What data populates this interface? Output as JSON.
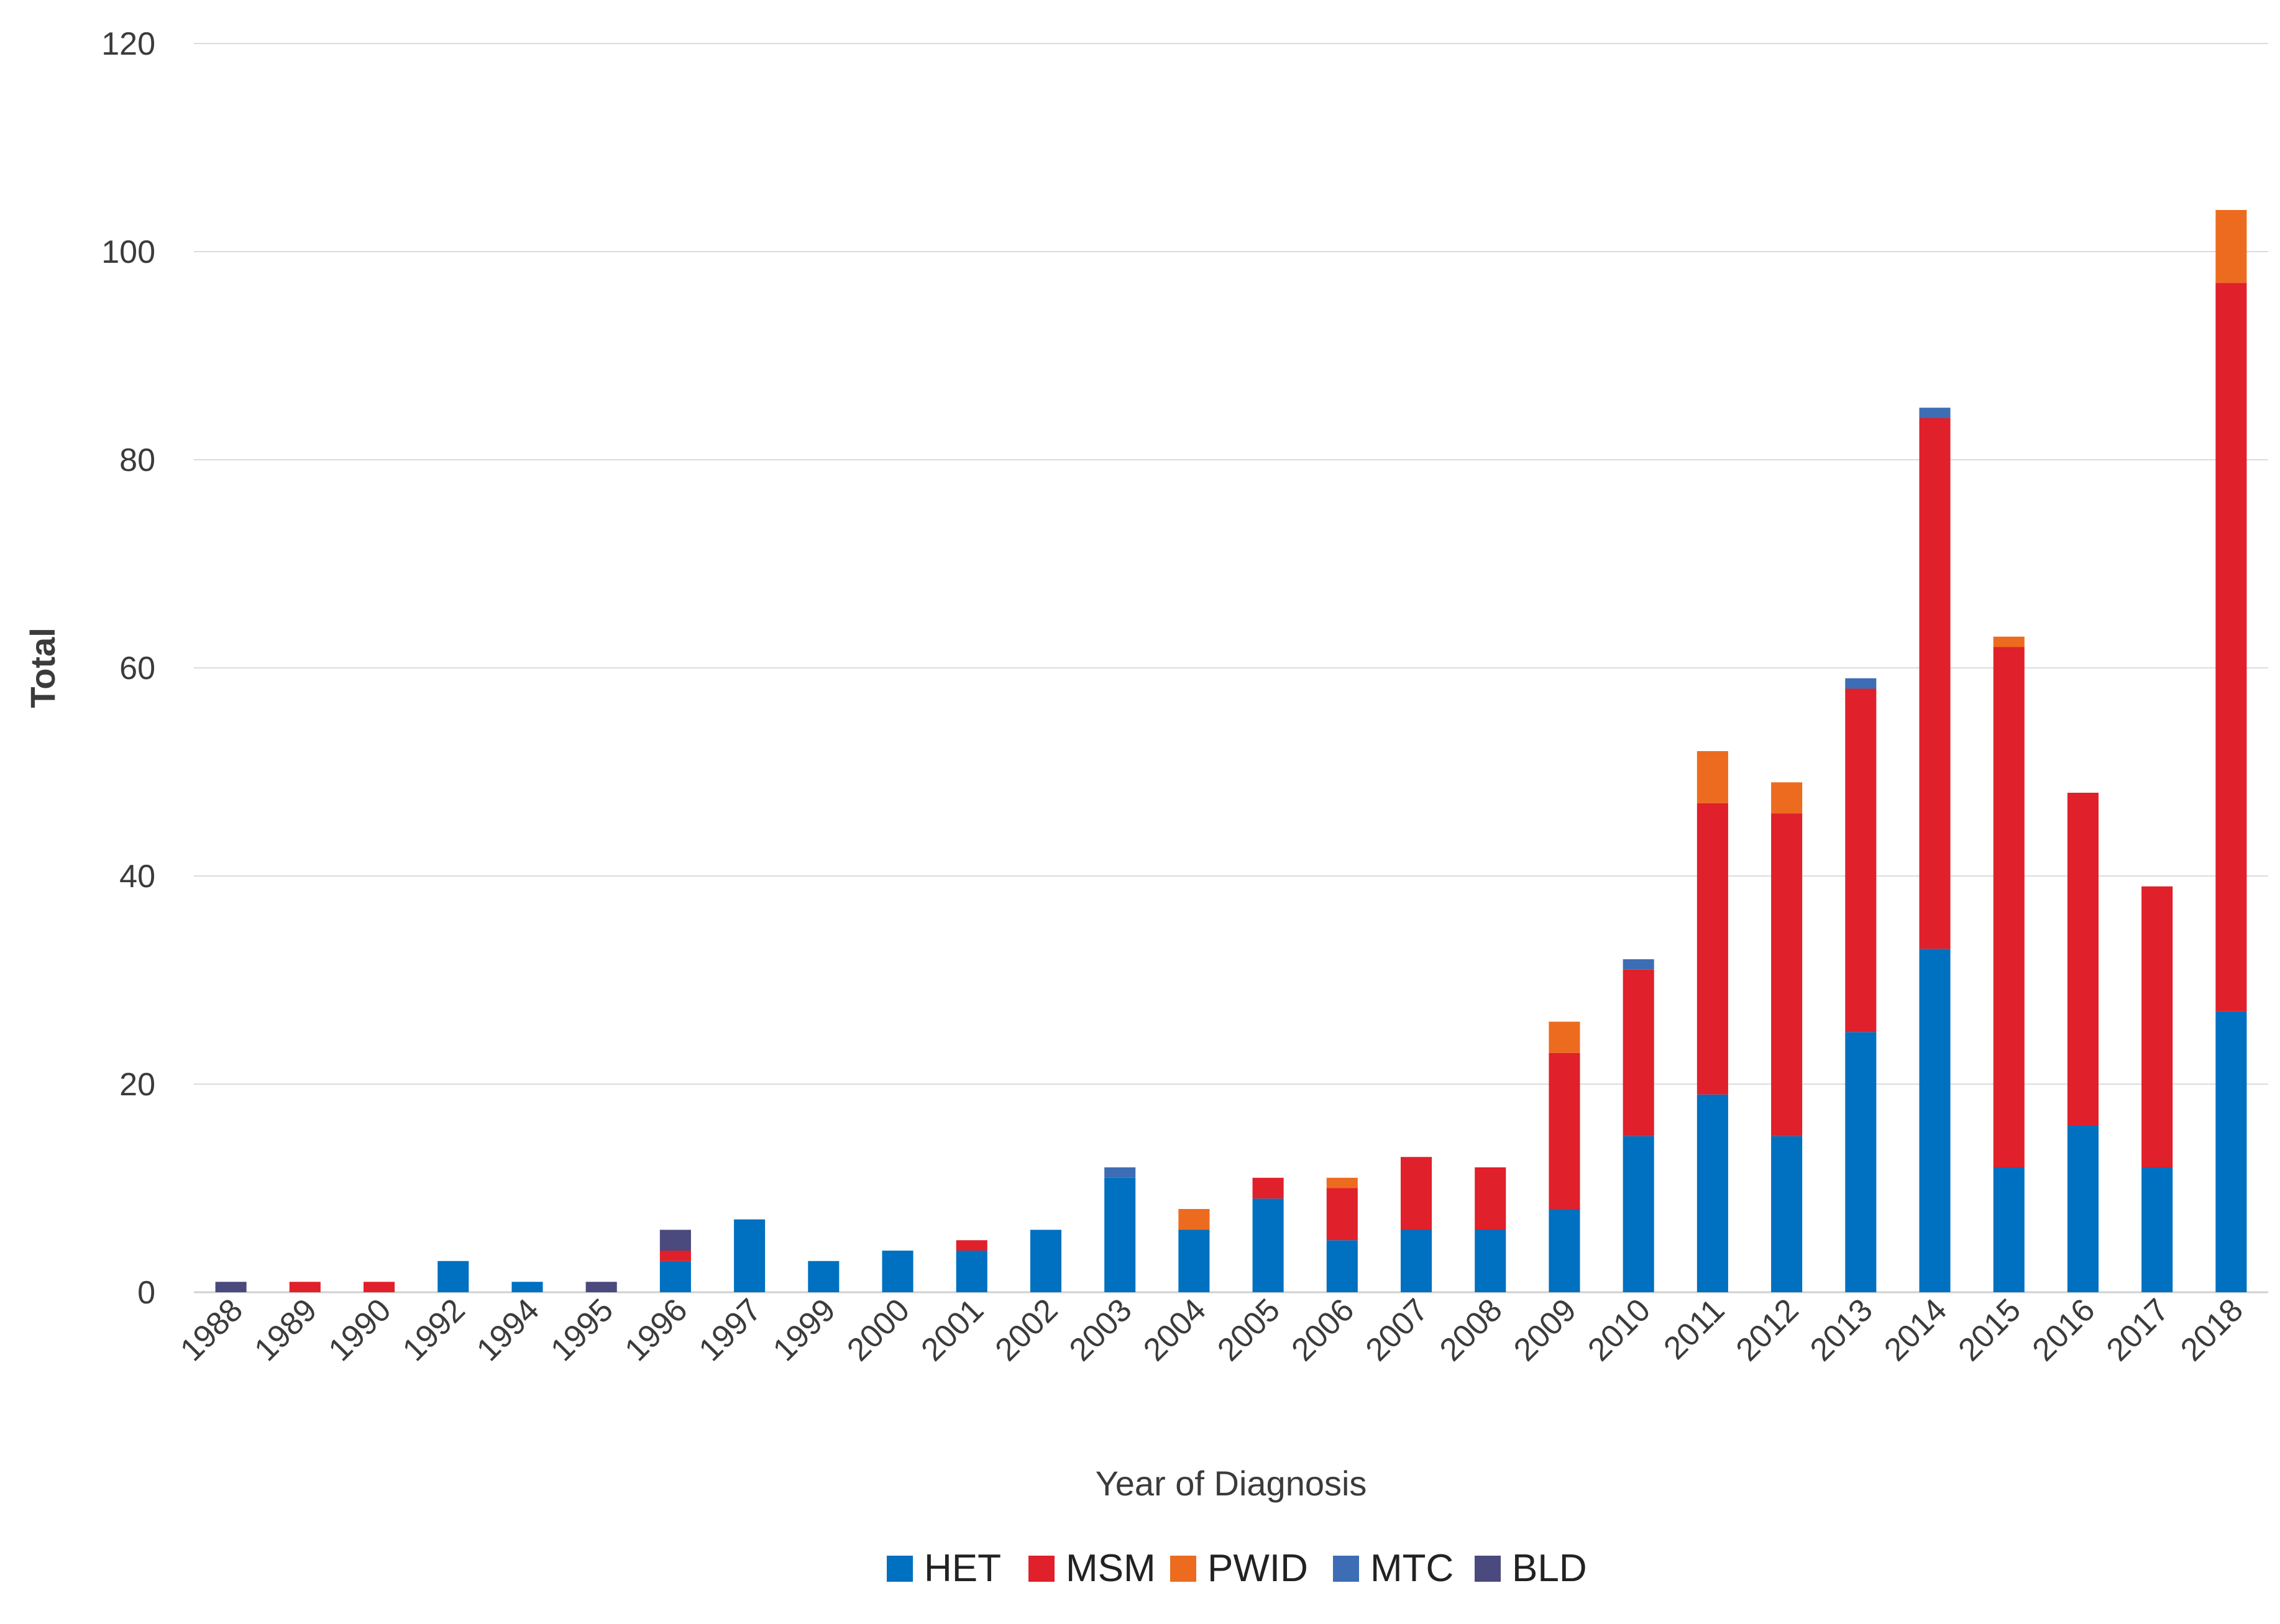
{
  "chart_data": {
    "type": "bar",
    "stacked": true,
    "title": "",
    "xlabel": "Year of Diagnosis",
    "ylabel": "Total",
    "ylim": [
      0,
      120
    ],
    "yticks": [
      0,
      20,
      40,
      60,
      80,
      100,
      120
    ],
    "grid": true,
    "legend_position": "bottom",
    "categories": [
      "1988",
      "1989",
      "1990",
      "1992",
      "1994",
      "1995",
      "1996",
      "1997",
      "1999",
      "2000",
      "2001",
      "2002",
      "2003",
      "2004",
      "2005",
      "2006",
      "2007",
      "2008",
      "2009",
      "2010",
      "2011",
      "2012",
      "2013",
      "2014",
      "2015",
      "2016",
      "2017",
      "2018"
    ],
    "series": [
      {
        "name": "HET",
        "color": "#0070c0",
        "values": [
          0,
          0,
          0,
          3,
          1,
          0,
          3,
          7,
          3,
          4,
          4,
          6,
          11,
          6,
          9,
          5,
          6,
          6,
          8,
          15,
          19,
          15,
          25,
          33,
          12,
          16,
          12,
          27
        ]
      },
      {
        "name": "MSM",
        "color": "#e0202a",
        "values": [
          0,
          1,
          1,
          0,
          0,
          0,
          1,
          0,
          0,
          0,
          1,
          0,
          0,
          0,
          2,
          5,
          7,
          6,
          15,
          16,
          28,
          31,
          33,
          51,
          50,
          32,
          27,
          70
        ]
      },
      {
        "name": "PWID",
        "color": "#ed6b1f",
        "values": [
          0,
          0,
          0,
          0,
          0,
          0,
          0,
          0,
          0,
          0,
          0,
          0,
          0,
          2,
          0,
          1,
          0,
          0,
          3,
          0,
          5,
          3,
          0,
          0,
          1,
          0,
          0,
          7
        ]
      },
      {
        "name": "MTC",
        "color": "#3d6db5",
        "values": [
          0,
          0,
          0,
          0,
          0,
          0,
          0,
          0,
          0,
          0,
          0,
          0,
          1,
          0,
          0,
          0,
          0,
          0,
          0,
          1,
          0,
          0,
          1,
          1,
          0,
          0,
          0,
          0
        ]
      },
      {
        "name": "BLD",
        "color": "#4a4a7e",
        "values": [
          1,
          0,
          0,
          0,
          0,
          1,
          2,
          0,
          0,
          0,
          0,
          0,
          0,
          0,
          0,
          0,
          0,
          0,
          0,
          0,
          0,
          0,
          0,
          0,
          0,
          0,
          0,
          0
        ]
      }
    ]
  }
}
